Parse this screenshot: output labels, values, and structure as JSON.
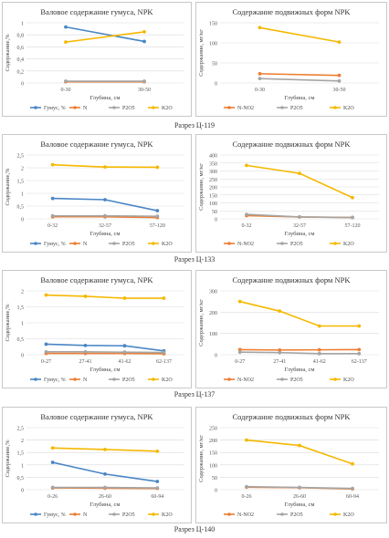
{
  "sections": [
    {
      "caption": "Разрез Ц-119"
    },
    {
      "caption": "Разрез Ц-133"
    },
    {
      "caption": "Разрез Ц-137"
    },
    {
      "caption": "Разрез Ц-140"
    }
  ],
  "chart_data": [
    {
      "type": "line",
      "title": "Валовое содержание гумуса, NPK",
      "ylabel": "Содержание,%",
      "xlabel": "Глубина, см",
      "categories": [
        "0-30",
        "30-50"
      ],
      "ylim": [
        0,
        1
      ],
      "yticks": [
        "0",
        "0,2",
        "0,4",
        "0,6",
        "0,8",
        "1"
      ],
      "series": [
        {
          "name": "Гумус, %",
          "color": "#4a86c5",
          "values": [
            0.93,
            0.69
          ]
        },
        {
          "name": "N",
          "color": "#ed7d31",
          "values": [
            0.02,
            0.02
          ]
        },
        {
          "name": "P2O5",
          "color": "#a5a5a5",
          "values": [
            0.03,
            0.03
          ]
        },
        {
          "name": "K2O",
          "color": "#f5b800",
          "values": [
            0.68,
            0.85
          ]
        }
      ]
    },
    {
      "type": "line",
      "title": "Содержание подвижных форм NPK",
      "ylabel": "Содержание, мг/кг",
      "xlabel": "Глубина, см",
      "categories": [
        "0-30",
        "30-50"
      ],
      "ylim": [
        0,
        150
      ],
      "yticks": [
        "0",
        "50",
        "100",
        "150"
      ],
      "series": [
        {
          "name": "N-NO2",
          "color": "#ed7d31",
          "values": [
            23,
            19
          ]
        },
        {
          "name": "P2O5",
          "color": "#a5a5a5",
          "values": [
            11,
            5
          ]
        },
        {
          "name": "K2O",
          "color": "#f5b800",
          "values": [
            138,
            102
          ]
        }
      ]
    },
    {
      "type": "line",
      "title": "Валовое содержание гумуса, NPK",
      "ylabel": "Содержание,%",
      "xlabel": "Глубина, см",
      "categories": [
        "0-32",
        "32-57",
        "57-120"
      ],
      "ylim": [
        0,
        2.5
      ],
      "yticks": [
        "0",
        "0,5",
        "1",
        "1,5",
        "2",
        "2,5"
      ],
      "series": [
        {
          "name": "Гумус, %",
          "color": "#4a86c5",
          "values": [
            0.8,
            0.75,
            0.32
          ]
        },
        {
          "name": "N",
          "color": "#ed7d31",
          "values": [
            0.08,
            0.08,
            0.05
          ]
        },
        {
          "name": "P2O5",
          "color": "#a5a5a5",
          "values": [
            0.12,
            0.12,
            0.1
          ]
        },
        {
          "name": "K2O",
          "color": "#f5b800",
          "values": [
            2.12,
            2.03,
            2.02
          ]
        }
      ]
    },
    {
      "type": "line",
      "title": "Содержание подвижных форм NPK",
      "ylabel": "Содержание, мг/кг",
      "xlabel": "Глубина, см",
      "categories": [
        "0-32",
        "32-57",
        "57-120"
      ],
      "ylim": [
        0,
        400
      ],
      "yticks": [
        "0",
        "50",
        "100",
        "150",
        "200",
        "250",
        "300",
        "350",
        "400"
      ],
      "series": [
        {
          "name": "N-NO2",
          "color": "#ed7d31",
          "values": [
            20,
            12,
            9
          ]
        },
        {
          "name": "P2O5",
          "color": "#a5a5a5",
          "values": [
            28,
            12,
            8
          ]
        },
        {
          "name": "K2O",
          "color": "#f5b800",
          "values": [
            335,
            285,
            133
          ]
        }
      ]
    },
    {
      "type": "line",
      "title": "Валовое содержание гумуса, NPK",
      "ylabel": "Содержание,%",
      "xlabel": "Глубина, см",
      "categories": [
        "0-27",
        "27-41",
        "41-62",
        "62-137"
      ],
      "ylim": [
        0,
        2
      ],
      "yticks": [
        "0",
        "0,5",
        "1",
        "1,5",
        "2"
      ],
      "series": [
        {
          "name": "Гумус, %",
          "color": "#4a86c5",
          "values": [
            0.33,
            0.29,
            0.28,
            0.12
          ]
        },
        {
          "name": "N",
          "color": "#ed7d31",
          "values": [
            0.04,
            0.04,
            0.04,
            0.03
          ]
        },
        {
          "name": "P2O5",
          "color": "#a5a5a5",
          "values": [
            0.09,
            0.09,
            0.08,
            0.07
          ]
        },
        {
          "name": "K2O",
          "color": "#f5b800",
          "values": [
            1.87,
            1.83,
            1.77,
            1.77
          ]
        }
      ]
    },
    {
      "type": "line",
      "title": "Содержание подвижных форм NPK",
      "ylabel": "Содержание, мг/кг",
      "xlabel": "Глубина, см",
      "categories": [
        "0-27",
        "27-41",
        "41-62",
        "62-137"
      ],
      "ylim": [
        0,
        300
      ],
      "yticks": [
        "0",
        "100",
        "200",
        "300"
      ],
      "series": [
        {
          "name": "N-NO2",
          "color": "#ed7d31",
          "values": [
            24,
            22,
            23,
            24
          ]
        },
        {
          "name": "P2O5",
          "color": "#a5a5a5",
          "values": [
            12,
            10,
            5,
            5
          ]
        },
        {
          "name": "K2O",
          "color": "#f5b800",
          "values": [
            250,
            205,
            135,
            135
          ]
        }
      ]
    },
    {
      "type": "line",
      "title": "Валовое содержание гумуса, NPK",
      "ylabel": "Содержание,%",
      "xlabel": "Глубина, см",
      "categories": [
        "0-26",
        "26-60",
        "60-94"
      ],
      "ylim": [
        0,
        2.5
      ],
      "yticks": [
        "0",
        "0,5",
        "1",
        "1,5",
        "2",
        "2,5"
      ],
      "series": [
        {
          "name": "Гумус, %",
          "color": "#4a86c5",
          "values": [
            1.1,
            0.63,
            0.33
          ]
        },
        {
          "name": "N",
          "color": "#ed7d31",
          "values": [
            0.07,
            0.06,
            0.05
          ]
        },
        {
          "name": "P2O5",
          "color": "#a5a5a5",
          "values": [
            0.09,
            0.09,
            0.07
          ]
        },
        {
          "name": "K2O",
          "color": "#f5b800",
          "values": [
            1.68,
            1.62,
            1.55
          ]
        }
      ]
    },
    {
      "type": "line",
      "title": "Содержание подвижных форм NPK",
      "ylabel": "Содержание, мг/кг",
      "xlabel": "Глубина, см",
      "categories": [
        "0-26",
        "26-60",
        "60-94"
      ],
      "ylim": [
        0,
        250
      ],
      "yticks": [
        "0",
        "50",
        "100",
        "150",
        "200",
        "250"
      ],
      "series": [
        {
          "name": "N-NO2",
          "color": "#ed7d31",
          "values": [
            10,
            8,
            3
          ]
        },
        {
          "name": "P2O5",
          "color": "#a5a5a5",
          "values": [
            12,
            9,
            5
          ]
        },
        {
          "name": "K2O",
          "color": "#f5b800",
          "values": [
            200,
            178,
            104
          ]
        }
      ]
    }
  ]
}
